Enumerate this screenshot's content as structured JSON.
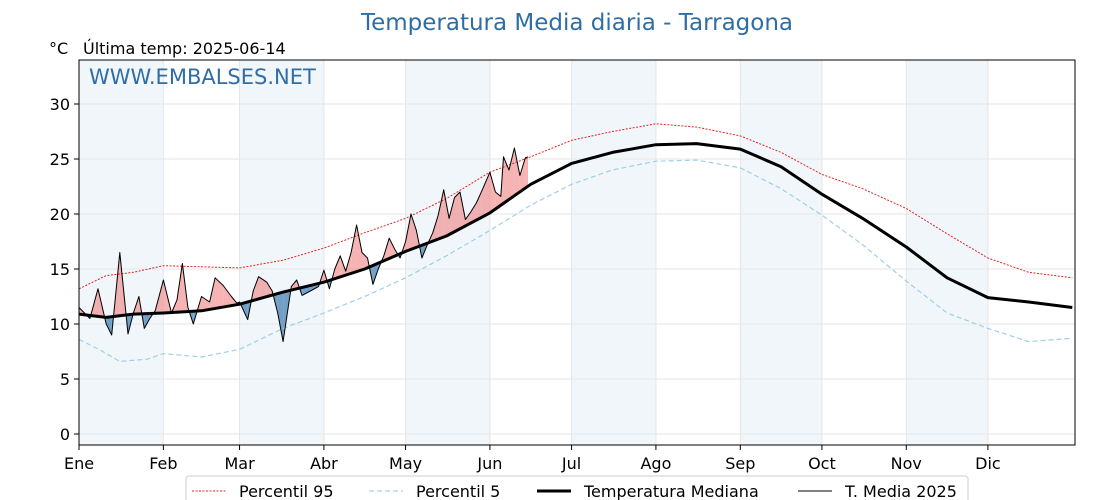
{
  "chart_data": {
    "type": "line",
    "title": "Temperatura Media diaria - Tarragona",
    "ylabel": "°C",
    "subtitle": "Última temp: 2025-06-14",
    "watermark": "WWW.EMBALSES.NET",
    "ylim": [
      -1,
      34
    ],
    "yticks": [
      0,
      5,
      10,
      15,
      20,
      25,
      30
    ],
    "xlim": [
      0,
      366
    ],
    "months": [
      "Ene",
      "Feb",
      "Mar",
      "Abr",
      "May",
      "Jun",
      "Jul",
      "Ago",
      "Sep",
      "Oct",
      "Nov",
      "Dic"
    ],
    "month_starts": [
      0,
      31,
      59,
      90,
      120,
      151,
      181,
      212,
      243,
      273,
      304,
      334
    ],
    "grid": true,
    "legend_position": "bottom-center",
    "colors": {
      "p95": "#e8231f",
      "p5": "#9fd0e2",
      "median": "#000000",
      "current": "#000000",
      "above": "#f08080",
      "below": "#4682b4",
      "title": "#2f6ea5",
      "band": "#f1f6fb"
    },
    "series": [
      {
        "name": "Percentil 95",
        "style": "dotted-red",
        "x": [
          0,
          10,
          20,
          31,
          45,
          59,
          75,
          90,
          105,
          120,
          135,
          151,
          166,
          181,
          196,
          212,
          227,
          243,
          258,
          273,
          288,
          304,
          319,
          334,
          349,
          365
        ],
        "y": [
          13.2,
          14.4,
          14.7,
          15.3,
          15.2,
          15.1,
          15.8,
          16.9,
          18.3,
          19.6,
          21.4,
          23.8,
          25.2,
          26.7,
          27.5,
          28.2,
          27.9,
          27.1,
          25.6,
          23.6,
          22.3,
          20.5,
          18.2,
          16.0,
          14.7,
          14.2
        ]
      },
      {
        "name": "Percentil 5",
        "style": "dashed-lightblue",
        "x": [
          0,
          8,
          15,
          25,
          31,
          45,
          59,
          75,
          90,
          105,
          120,
          135,
          151,
          166,
          181,
          196,
          212,
          227,
          243,
          258,
          273,
          288,
          304,
          319,
          334,
          349,
          365
        ],
        "y": [
          8.6,
          7.6,
          6.6,
          6.8,
          7.3,
          7.0,
          7.7,
          9.6,
          11.0,
          12.5,
          14.2,
          16.2,
          18.5,
          20.8,
          22.7,
          24.0,
          24.8,
          24.9,
          24.2,
          22.3,
          19.9,
          17.2,
          13.9,
          11.0,
          9.6,
          8.4,
          8.7
        ]
      },
      {
        "name": "Temperatura Mediana",
        "style": "thick-black",
        "x": [
          0,
          10,
          20,
          31,
          45,
          59,
          75,
          90,
          105,
          120,
          135,
          151,
          166,
          181,
          196,
          212,
          227,
          243,
          258,
          273,
          288,
          304,
          319,
          334,
          349,
          365
        ],
        "y": [
          10.9,
          10.6,
          10.9,
          11.0,
          11.2,
          11.8,
          12.9,
          13.8,
          15.0,
          16.6,
          18.0,
          20.1,
          22.7,
          24.6,
          25.6,
          26.3,
          26.4,
          25.9,
          24.3,
          21.8,
          19.6,
          17.0,
          14.2,
          12.4,
          12.0,
          11.5
        ]
      },
      {
        "name": "T. Media 2025",
        "style": "thin-black",
        "x": [
          0,
          4,
          7,
          10,
          12,
          15,
          18,
          20,
          22,
          24,
          26,
          28,
          31,
          34,
          36,
          38,
          40,
          42,
          45,
          48,
          50,
          53,
          56,
          58,
          59,
          62,
          64,
          66,
          69,
          71,
          73,
          75,
          78,
          80,
          82,
          85,
          88,
          90,
          92,
          94,
          96,
          98,
          100,
          102,
          104,
          106,
          108,
          110,
          112,
          114,
          116,
          118,
          120,
          122,
          124,
          126,
          128,
          130,
          132,
          134,
          136,
          138,
          140,
          142,
          144,
          146,
          148,
          151,
          153,
          155,
          156,
          158,
          160,
          162,
          164,
          165
        ],
        "y": [
          11.5,
          10.5,
          13.2,
          10.0,
          9.0,
          16.5,
          9.1,
          11.0,
          12.5,
          9.6,
          10.5,
          11.2,
          14.0,
          11.0,
          12.2,
          15.5,
          11.5,
          10.0,
          12.5,
          12.0,
          14.2,
          13.5,
          12.5,
          11.9,
          12.0,
          10.4,
          13.0,
          14.3,
          13.8,
          13.0,
          11.0,
          8.4,
          13.4,
          14.0,
          12.6,
          13.0,
          13.4,
          14.9,
          13.2,
          15.0,
          16.2,
          14.8,
          16.5,
          19.0,
          16.5,
          16.0,
          13.6,
          15.0,
          16.2,
          17.8,
          16.8,
          16.0,
          17.5,
          20.0,
          18.5,
          16.0,
          17.2,
          18.3,
          19.9,
          22.2,
          19.6,
          21.5,
          22.0,
          19.5,
          20.2,
          21.0,
          22.1,
          23.8,
          22.0,
          21.6,
          25.2,
          24.0,
          26.0,
          23.5,
          25.1,
          25.2
        ]
      }
    ]
  }
}
